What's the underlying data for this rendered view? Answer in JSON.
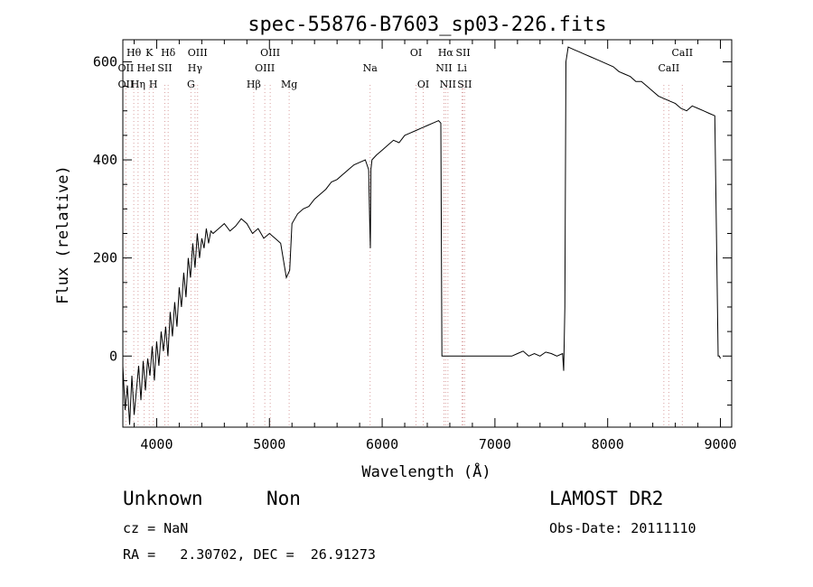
{
  "chart_data": {
    "type": "line",
    "title": "spec-55876-B7603_sp03-226.fits",
    "xlabel": "Wavelength (Å)",
    "ylabel": "Flux (relative)",
    "xlim": [
      3700,
      9100
    ],
    "ylim": [
      -145,
      645
    ],
    "xticks": [
      4000,
      5000,
      6000,
      7000,
      8000,
      9000
    ],
    "yticks": [
      0,
      200,
      400,
      600
    ],
    "grid": false,
    "line_color": "#000000",
    "marker_color": "#d9a0a0",
    "series": [
      {
        "x": [
          3700,
          3720,
          3740,
          3760,
          3780,
          3800,
          3820,
          3840,
          3860,
          3880,
          3900,
          3920,
          3940,
          3960,
          3980,
          4000,
          4020,
          4040,
          4060,
          4080,
          4100,
          4120,
          4140,
          4160,
          4180,
          4200,
          4220,
          4240,
          4260,
          4280,
          4300,
          4320,
          4340,
          4360,
          4380,
          4400,
          4420,
          4440,
          4460,
          4480,
          4500,
          4550,
          4600,
          4650,
          4700,
          4750,
          4800,
          4850,
          4900,
          4950,
          5000,
          5050,
          5100,
          5150,
          5180,
          5200,
          5250,
          5300,
          5350,
          5400,
          5450,
          5500,
          5550,
          5600,
          5650,
          5700,
          5750,
          5800,
          5850,
          5880,
          5890,
          5895,
          5900,
          5910,
          5950,
          6000,
          6050,
          6100,
          6150,
          6200,
          6250,
          6300,
          6350,
          6400,
          6450,
          6500,
          6520,
          6530,
          6560,
          6600,
          6700,
          6800,
          6900,
          7000,
          7100,
          7150,
          7200,
          7250,
          7300,
          7350,
          7400,
          7450,
          7500,
          7550,
          7600,
          7610,
          7620,
          7630,
          7650,
          7700,
          7750,
          7800,
          7850,
          7900,
          7950,
          8000,
          8050,
          8100,
          8150,
          8200,
          8250,
          8300,
          8350,
          8400,
          8450,
          8500,
          8550,
          8600,
          8650,
          8700,
          8750,
          8800,
          8850,
          8900,
          8950,
          8980,
          8990,
          9000
        ],
        "y": [
          -20,
          -110,
          -60,
          -140,
          -40,
          -120,
          -70,
          -20,
          -90,
          -10,
          -70,
          -5,
          -40,
          20,
          -50,
          30,
          -20,
          50,
          10,
          60,
          0,
          90,
          40,
          110,
          60,
          140,
          100,
          170,
          120,
          200,
          160,
          230,
          180,
          250,
          200,
          240,
          220,
          260,
          230,
          255,
          250,
          260,
          270,
          255,
          265,
          280,
          270,
          250,
          260,
          240,
          250,
          240,
          230,
          160,
          175,
          270,
          290,
          300,
          305,
          320,
          330,
          340,
          355,
          360,
          370,
          380,
          390,
          395,
          400,
          380,
          270,
          220,
          380,
          400,
          410,
          420,
          430,
          440,
          435,
          450,
          455,
          460,
          465,
          470,
          475,
          480,
          475,
          0,
          0,
          0,
          0,
          0,
          0,
          0,
          0,
          0,
          5,
          10,
          0,
          5,
          0,
          8,
          5,
          0,
          5,
          -30,
          100,
          600,
          630,
          625,
          620,
          615,
          610,
          605,
          600,
          595,
          590,
          580,
          575,
          570,
          560,
          560,
          550,
          540,
          530,
          525,
          520,
          515,
          505,
          500,
          510,
          505,
          500,
          495,
          490,
          0,
          0,
          -5
        ]
      }
    ],
    "line_labels": [
      {
        "text": "Hθ",
        "row": 0,
        "x": 3797
      },
      {
        "text": "K",
        "row": 0,
        "x": 3934
      },
      {
        "text": "Hδ",
        "row": 0,
        "x": 4102
      },
      {
        "text": "OIII",
        "row": 0,
        "x": 4363
      },
      {
        "text": "OIII",
        "row": 0,
        "x": 5007
      },
      {
        "text": "OI",
        "row": 0,
        "x": 6300
      },
      {
        "text": "Hα",
        "row": 0,
        "x": 6563
      },
      {
        "text": "SII",
        "row": 0,
        "x": 6717
      },
      {
        "text": "CaII",
        "row": 0,
        "x": 8662
      },
      {
        "text": "OII",
        "row": 1,
        "x": 3727
      },
      {
        "text": "He",
        "row": 1,
        "x": 3889
      },
      {
        "text": "I",
        "row": 1,
        "x": 3970
      },
      {
        "text": "SII",
        "row": 1,
        "x": 4072
      },
      {
        "text": "Hγ",
        "row": 1,
        "x": 4340
      },
      {
        "text": "OIII",
        "row": 1,
        "x": 4959
      },
      {
        "text": "Na",
        "row": 1,
        "x": 5893
      },
      {
        "text": "NII",
        "row": 1,
        "x": 6548
      },
      {
        "text": "Li",
        "row": 1,
        "x": 6708
      },
      {
        "text": "CaII",
        "row": 1,
        "x": 8542
      },
      {
        "text": "OII",
        "row": 2,
        "x": 3727
      },
      {
        "text": "Hη",
        "row": 2,
        "x": 3835
      },
      {
        "text": "H",
        "row": 2,
        "x": 3970
      },
      {
        "text": "G",
        "row": 2,
        "x": 4304
      },
      {
        "text": "Hβ",
        "row": 2,
        "x": 4861
      },
      {
        "text": "Mg",
        "row": 2,
        "x": 5175
      },
      {
        "text": "OI",
        "row": 2,
        "x": 6364
      },
      {
        "text": "NII",
        "row": 2,
        "x": 6583
      },
      {
        "text": "SII",
        "row": 2,
        "x": 6731
      }
    ],
    "line_markers": [
      3727,
      3797,
      3835,
      3889,
      3934,
      3970,
      4072,
      4102,
      4304,
      4340,
      4363,
      4861,
      4959,
      5007,
      5175,
      5893,
      6300,
      6364,
      6548,
      6563,
      6583,
      6708,
      6717,
      6731,
      8498,
      8542,
      8662
    ]
  },
  "info": {
    "object_class": "Unknown",
    "object_subclass": "Non",
    "survey": "LAMOST DR2",
    "cz": "cz = NaN",
    "obs_date": "Obs-Date: 20111110",
    "coords": "RA =   2.30702, DEC =  26.91273"
  }
}
